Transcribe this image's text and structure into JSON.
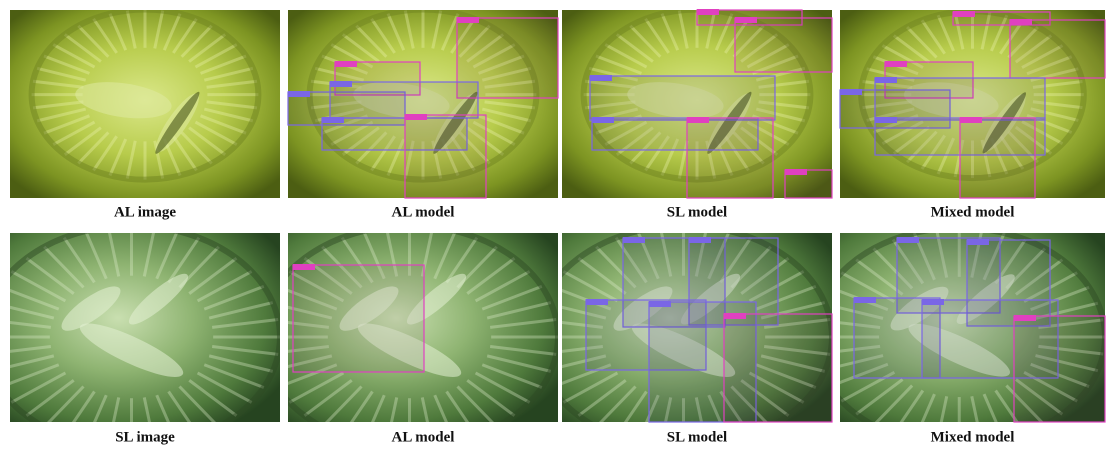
{
  "figure": {
    "rows": [
      {
        "captions": [
          "AL image",
          "AL model",
          "SL model",
          "Mixed model"
        ]
      },
      {
        "captions": [
          "SL image",
          "AL model",
          "SL model",
          "Mixed model"
        ]
      }
    ]
  }
}
